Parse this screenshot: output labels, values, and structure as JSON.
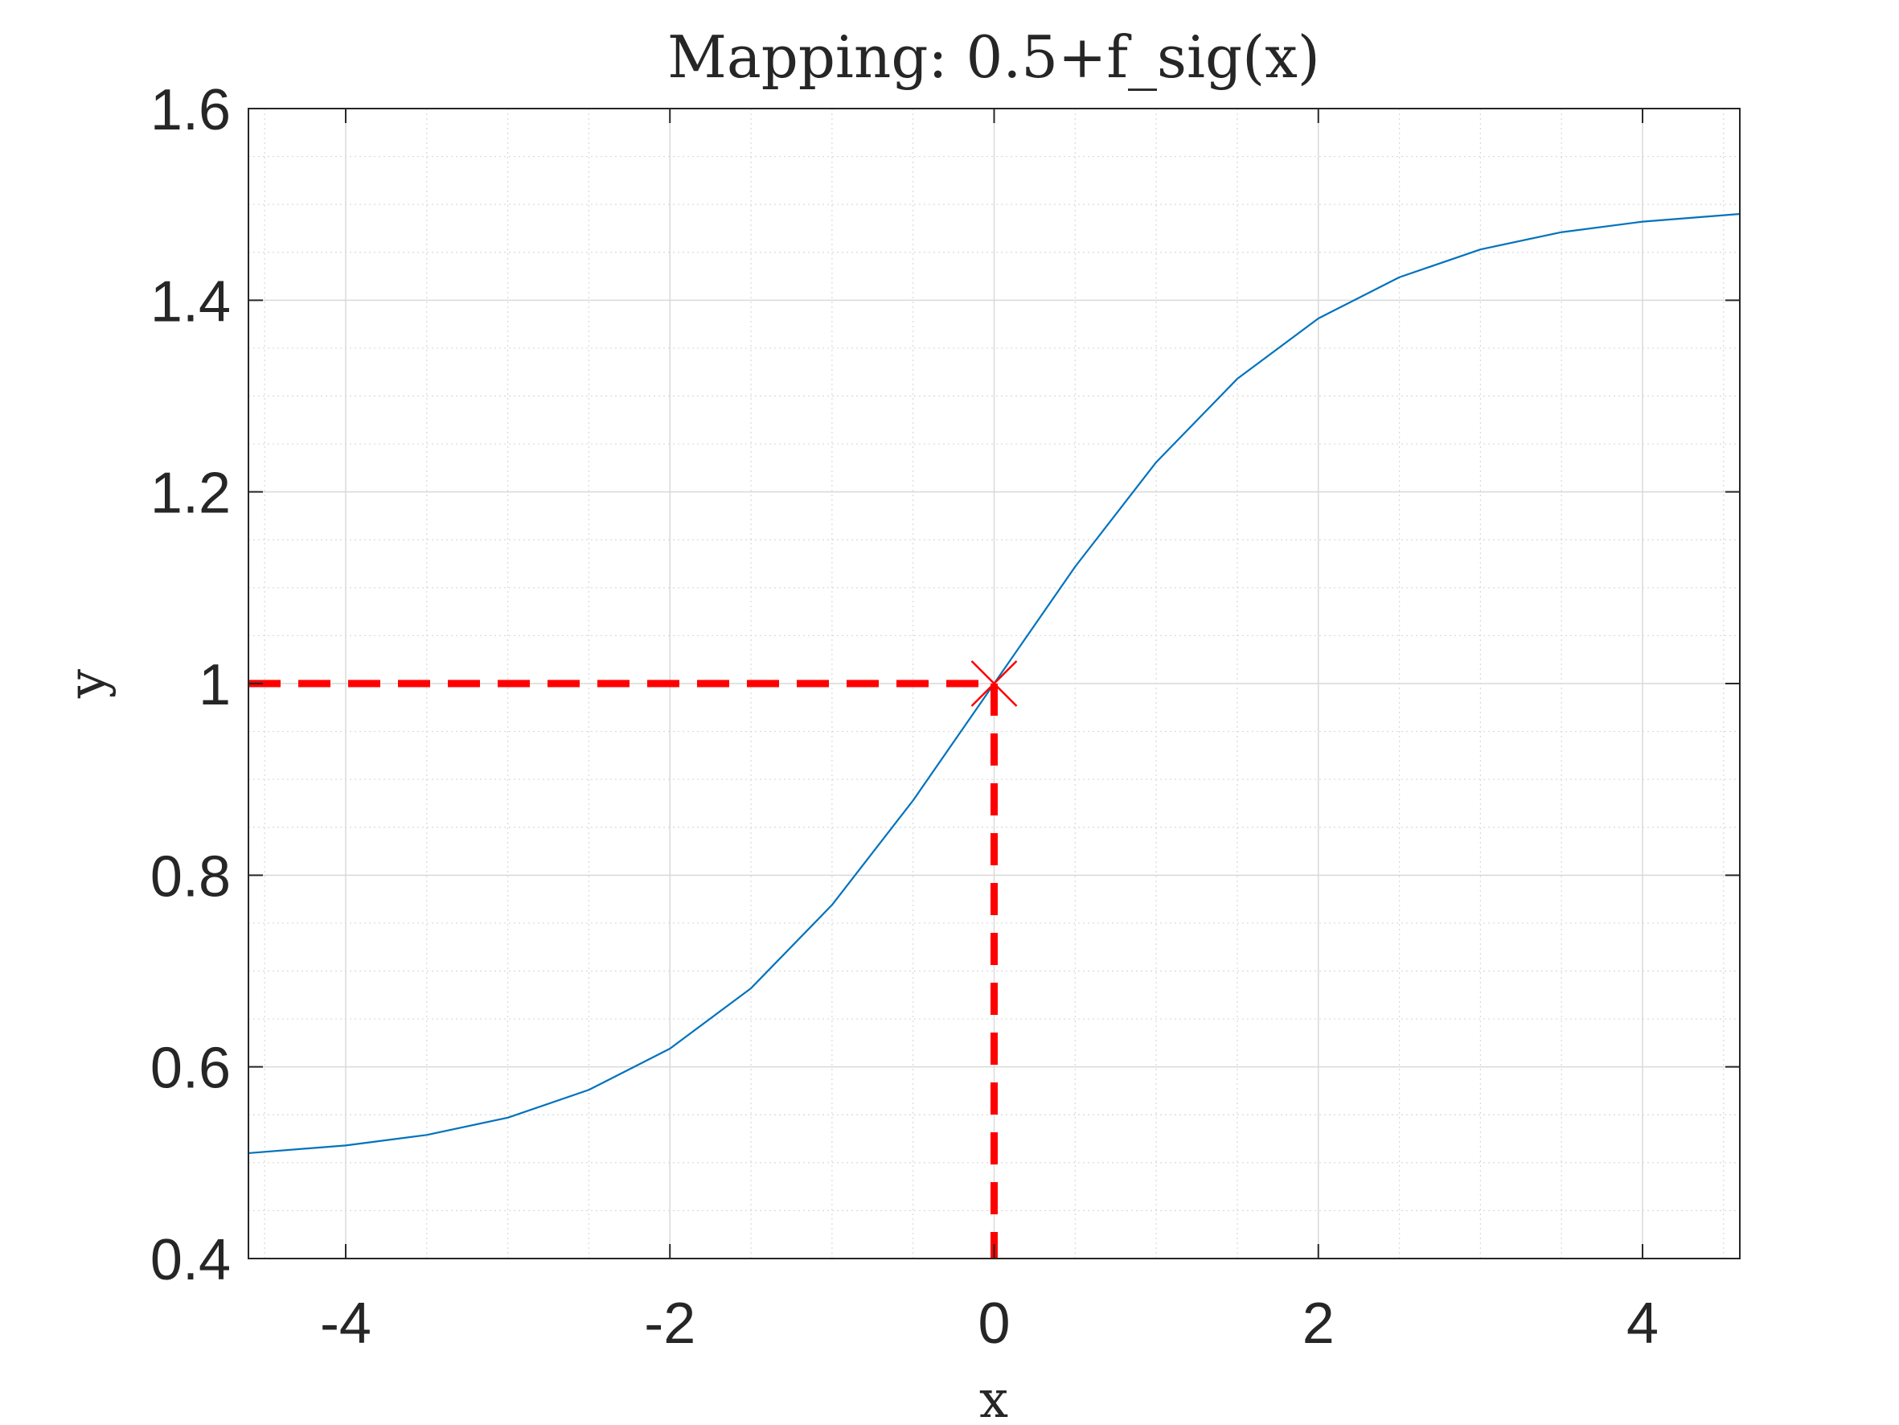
{
  "chart_data": {
    "type": "line",
    "title": "Mapping: 0.5+f_sig(x)",
    "xlabel": "x",
    "ylabel": "y",
    "xlim": [
      -4.6,
      4.6
    ],
    "ylim": [
      0.4,
      1.6
    ],
    "xticks": [
      -4,
      -2,
      0,
      2,
      4
    ],
    "xtick_labels": [
      "-4",
      "-2",
      "0",
      "2",
      "4"
    ],
    "yticks": [
      0.4,
      0.6,
      0.8,
      1.0,
      1.2,
      1.4,
      1.6
    ],
    "ytick_labels": [
      "0.4",
      "0.6",
      "0.8",
      "1",
      "1.2",
      "1.4",
      "1.6"
    ],
    "grid": true,
    "minor_grid": true,
    "series": [
      {
        "color": "#0072bd",
        "style": "solid",
        "x": [
          -4.6,
          -4.0,
          -3.5,
          -3.0,
          -2.5,
          -2.0,
          -1.5,
          -1.0,
          -0.5,
          0.0,
          0.5,
          1.0,
          1.5,
          2.0,
          2.5,
          3.0,
          3.5,
          4.0,
          4.6
        ],
        "y": [
          0.51,
          0.518,
          0.529,
          0.547,
          0.576,
          0.619,
          0.682,
          0.769,
          0.878,
          1.0,
          1.122,
          1.231,
          1.318,
          1.381,
          1.424,
          1.453,
          1.471,
          1.482,
          1.49
        ]
      }
    ],
    "marker": {
      "x": 0,
      "y": 1,
      "symbol": "x",
      "color": "#ff0000"
    },
    "guide_lines": [
      {
        "from": [
          -4.6,
          1
        ],
        "to": [
          0,
          1
        ],
        "color": "#ff0000",
        "style": "dashed"
      },
      {
        "from": [
          0,
          1
        ],
        "to": [
          0,
          0.4
        ],
        "color": "#ff0000",
        "style": "dashed"
      }
    ]
  }
}
